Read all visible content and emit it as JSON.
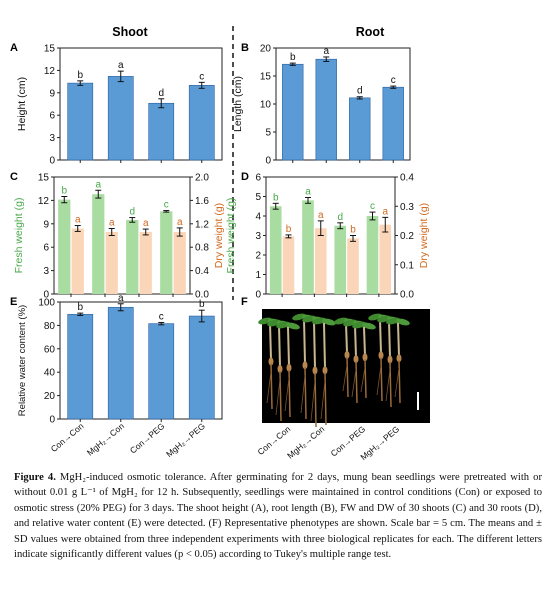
{
  "headers": {
    "shoot": "Shoot",
    "root": "Root"
  },
  "panels": {
    "A": "A",
    "B": "B",
    "C": "C",
    "D": "D",
    "E": "E",
    "F": "F"
  },
  "categories": [
    "Con→Con",
    "MgH₂→Con",
    "Con→PEG",
    "MgH₂→PEG"
  ],
  "colors": {
    "blue": "#5b9bd5",
    "green": "#a8dca0",
    "peach": "#fbd5b8",
    "green_text": "#4aa84a",
    "orange_text": "#d2691e"
  },
  "chart_data": [
    {
      "panel": "A",
      "type": "bar",
      "ylabel": "Height (cm)",
      "ylim": [
        0,
        15
      ],
      "yticks": [
        "0",
        "3",
        "6",
        "9",
        "12",
        "15"
      ],
      "categories": [
        "Con→Con",
        "MgH₂→Con",
        "Con→PEG",
        "MgH₂→PEG"
      ],
      "series": [
        {
          "values": [
            10.3,
            11.2,
            7.6,
            10.0
          ],
          "errors": [
            0.3,
            0.7,
            0.6,
            0.4
          ],
          "letters": [
            "b",
            "a",
            "d",
            "c"
          ]
        }
      ]
    },
    {
      "panel": "B",
      "type": "bar",
      "ylabel": "Length (cm)",
      "ylim": [
        0,
        20
      ],
      "yticks": [
        "0",
        "5",
        "10",
        "15",
        "20"
      ],
      "categories": [
        "Con→Con",
        "MgH₂→Con",
        "Con→PEG",
        "MgH₂→PEG"
      ],
      "series": [
        {
          "values": [
            17.1,
            18.0,
            11.1,
            13.0
          ],
          "errors": [
            0.2,
            0.4,
            0.2,
            0.2
          ],
          "letters": [
            "b",
            "a",
            "d",
            "c"
          ]
        }
      ]
    },
    {
      "panel": "C",
      "type": "bar",
      "ylabel_left": "Fresh weight (g)",
      "ylabel_right": "Dry weight (g)",
      "ylim_left": [
        0,
        15
      ],
      "ylim_right": [
        0,
        2.0
      ],
      "yticks_left": [
        "0",
        "3",
        "6",
        "9",
        "12",
        "15"
      ],
      "yticks_right": [
        "0.0",
        "0.4",
        "0.8",
        "1.2",
        "1.6",
        "2.0"
      ],
      "categories": [
        "Con→Con",
        "MgH₂→Con",
        "Con→PEG",
        "MgH₂→PEG"
      ],
      "series": [
        {
          "axis": "left",
          "values": [
            12.1,
            12.8,
            9.5,
            10.6
          ],
          "errors": [
            0.4,
            0.5,
            0.3,
            0.1
          ],
          "letters": [
            "b",
            "a",
            "d",
            "c"
          ]
        },
        {
          "axis": "right",
          "values": [
            1.12,
            1.06,
            1.06,
            1.06
          ],
          "errors": [
            0.05,
            0.06,
            0.05,
            0.07
          ],
          "letters": [
            "a",
            "a",
            "a",
            "a"
          ]
        }
      ]
    },
    {
      "panel": "D",
      "type": "bar",
      "ylabel_left": "Fresh weight (g)",
      "ylabel_right": "Dry weight (g)",
      "ylim_left": [
        0,
        6
      ],
      "ylim_right": [
        0,
        0.4
      ],
      "yticks_left": [
        "0",
        "1",
        "2",
        "3",
        "4",
        "5",
        "6"
      ],
      "yticks_right": [
        "0.0",
        "0.1",
        "0.2",
        "0.3",
        "0.4"
      ],
      "categories": [
        "Con→Con",
        "MgH₂→Con",
        "Con→PEG",
        "MgH₂→PEG"
      ],
      "series": [
        {
          "axis": "left",
          "values": [
            4.5,
            4.8,
            3.5,
            4.0
          ],
          "errors": [
            0.15,
            0.15,
            0.15,
            0.2
          ],
          "letters": [
            "b",
            "a",
            "d",
            "c"
          ]
        },
        {
          "axis": "right",
          "values": [
            0.197,
            0.225,
            0.19,
            0.237
          ],
          "errors": [
            0.005,
            0.025,
            0.01,
            0.025
          ],
          "letters": [
            "b",
            "a",
            "b",
            "a"
          ]
        }
      ]
    },
    {
      "panel": "E",
      "type": "bar",
      "ylabel": "Relative water content (%)",
      "ylim": [
        0,
        100
      ],
      "yticks": [
        "0",
        "20",
        "40",
        "60",
        "80",
        "100"
      ],
      "categories": [
        "Con→Con",
        "MgH₂→Con",
        "Con→PEG",
        "MgH₂→PEG"
      ],
      "series": [
        {
          "values": [
            89.5,
            95.5,
            81.5,
            88.0
          ],
          "errors": [
            1.0,
            3.0,
            1.0,
            5.0
          ],
          "letters": [
            "b",
            "a",
            "c",
            "b"
          ]
        }
      ]
    }
  ],
  "caption": {
    "label": "Figure 4.",
    "text": " MgH₂-induced osmotic tolerance. After germinating for 2 days, mung bean seedlings were pretreated with or without 0.01 g L⁻¹ of MgH₂ for 12 h. Subsequently, seedlings were maintained in control conditions (Con) or exposed to osmotic stress (20% PEG) for 3 days. The shoot height (A), root length (B), FW and DW of 30 shoots (C) and 30 roots (D), and relative water content (E) were detected. (F) Representative phenotypes are shown. Scale bar = 5 cm. The means and ± SD values were obtained from three independent experiments with three biological replicates for each. The different letters indicate significantly different values (p < 0.05) according to Tukey's multiple range test."
  }
}
